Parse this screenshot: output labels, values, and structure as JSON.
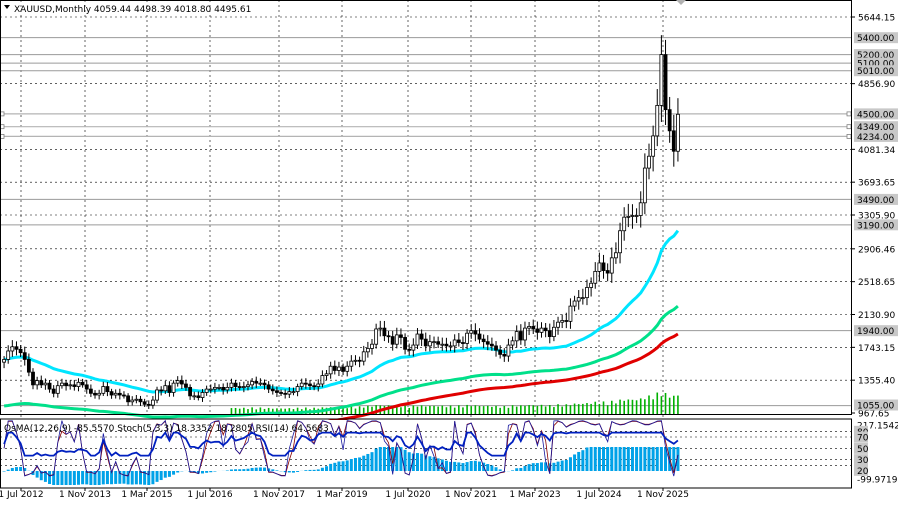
{
  "header": {
    "symbol_line": "XAUUSD,Monthly  4059.44 4498.39 4018.80 4495.61"
  },
  "indicator_header": "OsMA(12,26,9) -85.5570  Stoch(5,3,3) 18.3352 18.2805  RSI(14) 64.5683",
  "colors": {
    "candles": "#000000",
    "ema_fast": "#00e5ff",
    "ema_mid": "#00e08a",
    "ema_slow": "#e00000",
    "volume": "#00b000",
    "osma": "#00a2e8",
    "stoch_main": "#1a1aa0",
    "stoch_signal": "#8a0000",
    "rsi": "#0020c0",
    "level_box": "#b4b4b4"
  },
  "chart_data": {
    "type": "candlestick",
    "symbol": "XAUUSD",
    "timeframe": "Monthly",
    "last_bar": {
      "open": 4059.44,
      "high": 4498.39,
      "low": 4018.8,
      "close": 4495.61
    },
    "price_axis_ticks": [
      5644.15,
      4856.9,
      4081.34,
      3693.65,
      3305.9,
      2906.46,
      2518.65,
      2130.9,
      1743.15,
      1355.4,
      967.65
    ],
    "level_labels": [
      5400.0,
      5200.0,
      5100.0,
      5010.0,
      4500.0,
      4349.0,
      4234.0,
      3490.0,
      3190.0,
      1940.0,
      1055.0
    ],
    "highlighted_levels": [
      4500.0,
      4349.0,
      4234.0
    ],
    "time_axis_labels": [
      "1 Jul 2012",
      "1 Nov 2013",
      "1 Mar 2015",
      "1 Jul 2016",
      "1 Nov 2017",
      "1 Mar 2019",
      "1 Jul 2020",
      "1 Nov 2021",
      "1 Mar 2023",
      "1 Jul 2024",
      "1 Nov 2025"
    ],
    "closes": [
      1600,
      1700,
      1750,
      1720,
      1680,
      1600,
      1450,
      1300,
      1350,
      1300,
      1320,
      1250,
      1200,
      1290,
      1320,
      1290,
      1300,
      1280,
      1330,
      1300,
      1250,
      1200,
      1180,
      1200,
      1280,
      1220,
      1180,
      1200,
      1180,
      1170,
      1100,
      1120,
      1130,
      1100,
      1070,
      1060,
      1120,
      1240,
      1230,
      1290,
      1210,
      1320,
      1350,
      1310,
      1270,
      1170,
      1170,
      1150,
      1210,
      1250,
      1250,
      1270,
      1270,
      1240,
      1270,
      1320,
      1280,
      1270,
      1280,
      1300,
      1340,
      1320,
      1320,
      1300,
      1250,
      1230,
      1210,
      1200,
      1190,
      1220,
      1220,
      1280,
      1320,
      1310,
      1290,
      1280,
      1310,
      1410,
      1430,
      1520,
      1470,
      1510,
      1460,
      1520,
      1580,
      1590,
      1580,
      1690,
      1730,
      1780,
      1960,
      1970,
      1880,
      1870,
      1780,
      1890,
      1860,
      1720,
      1710,
      1770,
      1900,
      1840,
      1760,
      1810,
      1810,
      1780,
      1780,
      1760,
      1760,
      1830,
      1800,
      1790,
      1910,
      1940,
      1900,
      1840,
      1810,
      1780,
      1760,
      1710,
      1660,
      1640,
      1770,
      1820,
      1930,
      1830,
      1970,
      1990,
      1960,
      1920,
      1970,
      1940,
      1870,
      1980,
      2040,
      2060,
      2050,
      2230,
      2290,
      2330,
      2330,
      2450,
      2500,
      2640,
      2740,
      2650,
      2620,
      2800,
      2860,
      3120,
      3280,
      3290,
      3300,
      3300,
      3450,
      3860,
      4000,
      4240,
      4600,
      5200,
      4550,
      4300,
      4059,
      4495
    ],
    "ema_fast_end": 3120,
    "ema_mid_end": 2230,
    "ema_slow_end": 1900,
    "volume_range": [
      0,
      100
    ],
    "indicators": {
      "osma": {
        "params": "12,26,9",
        "value": -85.557
      },
      "stochastic": {
        "params": "5,3,3",
        "main": 18.3352,
        "signal": 18.2805
      },
      "rsi": {
        "params": "14",
        "value": 64.5683
      }
    },
    "indicator_axis_labels": [
      "217.1542",
      "80",
      "70",
      "50",
      "30",
      "20",
      "-99.9719"
    ]
  }
}
